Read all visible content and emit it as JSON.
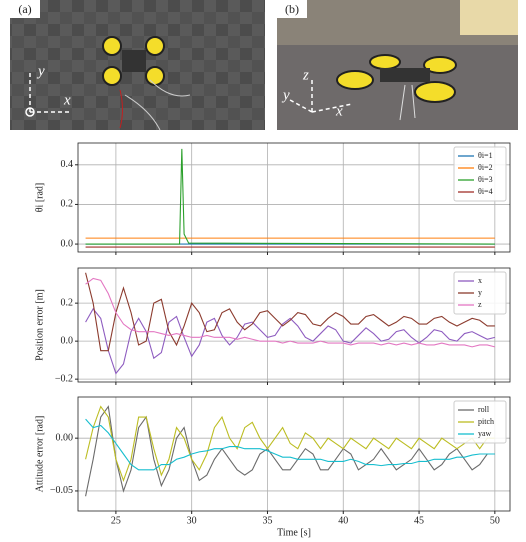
{
  "photos": [
    {
      "label": "(a)",
      "axes": [
        "y",
        "x"
      ]
    },
    {
      "label": "(b)",
      "axes": [
        "z",
        "y",
        "x"
      ]
    }
  ],
  "chart_data": [
    {
      "type": "line",
      "ylabel": "θi [rad]",
      "legend": "upper right",
      "grid": true,
      "xtick_labels": false,
      "xlim": [
        22.5,
        51
      ],
      "xticks": [
        25,
        30,
        35,
        40,
        45,
        50
      ],
      "ylim": [
        -0.04,
        0.51
      ],
      "yticks": [
        {
          "value": 0,
          "label": "0.0"
        },
        {
          "value": 0.2,
          "label": "0.2"
        },
        {
          "value": 0.4,
          "label": "0.4"
        }
      ],
      "x": [
        23,
        29.2,
        29.35,
        29.5,
        29.8,
        50
      ],
      "series": [
        {
          "name": "θi=1",
          "color": "#1f77b4",
          "values": [
            0,
            0,
            0,
            0,
            0,
            0
          ]
        },
        {
          "name": "θi=2",
          "color": "#ff7f0e",
          "values": [
            0.03,
            0.03,
            0.03,
            0.03,
            0.03,
            0.03
          ]
        },
        {
          "name": "θi=3",
          "color": "#2ca02c",
          "values": [
            0,
            0,
            0.48,
            0.05,
            0.005,
            0
          ]
        },
        {
          "name": "θi=4",
          "color": "#a0302a",
          "values": [
            -0.015,
            -0.015,
            -0.015,
            -0.015,
            -0.015,
            -0.015
          ]
        }
      ]
    },
    {
      "type": "line",
      "ylabel": "Position error [m]",
      "legend": "upper right",
      "grid": true,
      "xtick_labels": false,
      "xlim": [
        22.5,
        51
      ],
      "xticks": [
        25,
        30,
        35,
        40,
        45,
        50
      ],
      "ylim": [
        -0.215,
        0.385
      ],
      "yticks": [
        {
          "value": -0.2,
          "label": "−0.2"
        },
        {
          "value": 0,
          "label": "0.0"
        },
        {
          "value": 0.2,
          "label": "0.2"
        }
      ],
      "x": [
        23,
        23.5,
        24,
        24.5,
        25,
        25.5,
        26,
        26.5,
        27,
        27.5,
        28,
        28.5,
        29,
        29.5,
        30,
        30.5,
        31,
        31.5,
        32,
        32.5,
        33,
        33.5,
        34,
        34.5,
        35,
        35.5,
        36,
        36.5,
        37,
        37.5,
        38,
        38.5,
        39,
        39.5,
        40,
        40.5,
        41,
        41.5,
        42,
        42.5,
        43,
        43.5,
        44,
        44.5,
        45,
        45.5,
        46,
        46.5,
        47,
        47.5,
        48,
        48.5,
        49,
        49.5,
        50
      ],
      "series": [
        {
          "name": "x",
          "color": "#8e5cc0",
          "values": [
            0.1,
            0.17,
            0.12,
            -0.05,
            -0.17,
            -0.12,
            0.05,
            0.12,
            0.05,
            -0.09,
            -0.06,
            0.1,
            0.13,
            0.02,
            -0.08,
            -0.02,
            0.1,
            0.12,
            0.03,
            -0.02,
            0.02,
            0.09,
            0.1,
            0.06,
            0.02,
            0.03,
            0.09,
            0.12,
            0.08,
            0.02,
            0.0,
            0.04,
            0.08,
            0.06,
            0.0,
            -0.01,
            0.03,
            0.07,
            0.04,
            0.0,
            0.01,
            0.05,
            0.06,
            0.02,
            -0.01,
            0.02,
            0.06,
            0.05,
            0.01,
            0.0,
            0.04,
            0.05,
            0.03,
            0.01,
            0.02
          ]
        },
        {
          "name": "y",
          "color": "#8c3b2e",
          "values": [
            0.36,
            0.2,
            -0.05,
            -0.05,
            0.15,
            0.28,
            0.15,
            -0.02,
            0.0,
            0.2,
            0.22,
            0.05,
            -0.02,
            0.08,
            0.2,
            0.15,
            0.05,
            0.06,
            0.15,
            0.17,
            0.1,
            0.06,
            0.09,
            0.15,
            0.16,
            0.12,
            0.08,
            0.11,
            0.15,
            0.14,
            0.09,
            0.08,
            0.12,
            0.15,
            0.13,
            0.09,
            0.09,
            0.13,
            0.14,
            0.11,
            0.08,
            0.1,
            0.13,
            0.12,
            0.09,
            0.09,
            0.12,
            0.13,
            0.1,
            0.08,
            0.1,
            0.12,
            0.11,
            0.08,
            0.08
          ]
        },
        {
          "name": "z",
          "color": "#e377c2",
          "values": [
            0.3,
            0.33,
            0.32,
            0.25,
            0.15,
            0.09,
            0.06,
            0.05,
            0.05,
            0.05,
            0.04,
            0.03,
            0.04,
            0.03,
            0.02,
            0.02,
            0.03,
            0.02,
            0.02,
            0.02,
            0.01,
            0.02,
            0.01,
            0.0,
            0.0,
            0.0,
            -0.01,
            0.0,
            -0.01,
            -0.01,
            -0.01,
            0.0,
            -0.01,
            -0.01,
            -0.01,
            -0.02,
            -0.01,
            -0.01,
            -0.01,
            -0.02,
            -0.01,
            -0.02,
            -0.01,
            -0.02,
            -0.01,
            -0.02,
            -0.02,
            -0.01,
            -0.02,
            -0.02,
            -0.02,
            -0.03,
            -0.02,
            -0.02,
            -0.03
          ]
        }
      ]
    },
    {
      "type": "line",
      "ylabel": "Attitude error [rad]",
      "xlabel": "Time [s]",
      "legend": "upper right",
      "grid": true,
      "xtick_labels": true,
      "xlim": [
        22.5,
        51
      ],
      "xticks": [
        25,
        30,
        35,
        40,
        45,
        50
      ],
      "ylim": [
        -0.069,
        0.039
      ],
      "yticks": [
        {
          "value": -0.05,
          "label": "−0.05"
        },
        {
          "value": 0,
          "label": "0.00"
        }
      ],
      "x": [
        23,
        23.5,
        24,
        24.5,
        25,
        25.5,
        26,
        26.5,
        27,
        27.5,
        28,
        28.5,
        29,
        29.5,
        30,
        30.5,
        31,
        31.5,
        32,
        32.5,
        33,
        33.5,
        34,
        34.5,
        35,
        35.5,
        36,
        36.5,
        37,
        37.5,
        38,
        38.5,
        39,
        39.5,
        40,
        40.5,
        41,
        41.5,
        42,
        42.5,
        43,
        43.5,
        44,
        44.5,
        45,
        45.5,
        46,
        46.5,
        47,
        47.5,
        48,
        48.5,
        49,
        49.5,
        50
      ],
      "series": [
        {
          "name": "roll",
          "color": "#6b6b6b",
          "values": [
            -0.055,
            -0.02,
            0.02,
            0.03,
            -0.02,
            -0.05,
            -0.03,
            0.01,
            0.02,
            -0.02,
            -0.045,
            -0.03,
            0.0,
            0.01,
            -0.02,
            -0.04,
            -0.035,
            -0.02,
            -0.01,
            -0.02,
            -0.03,
            -0.035,
            -0.03,
            -0.015,
            -0.01,
            -0.02,
            -0.03,
            -0.03,
            -0.02,
            -0.01,
            -0.015,
            -0.03,
            -0.03,
            -0.02,
            -0.01,
            -0.015,
            -0.03,
            -0.025,
            -0.02,
            -0.01,
            -0.02,
            -0.03,
            -0.025,
            -0.02,
            -0.01,
            -0.02,
            -0.03,
            -0.025,
            -0.015,
            -0.01,
            -0.02,
            -0.03,
            -0.025,
            -0.015,
            -0.015
          ]
        },
        {
          "name": "pitch",
          "color": "#bcbd22",
          "values": [
            -0.02,
            0.01,
            0.03,
            0.02,
            -0.02,
            -0.04,
            -0.02,
            0.02,
            0.02,
            -0.01,
            -0.035,
            -0.02,
            0.01,
            0.0,
            -0.02,
            -0.03,
            -0.015,
            0.01,
            0.02,
            0.0,
            -0.01,
            0.01,
            0.015,
            0.0,
            -0.01,
            0.0,
            0.01,
            -0.005,
            -0.01,
            0.005,
            0.0,
            -0.01,
            0.0,
            -0.005,
            -0.01,
            0.0,
            -0.005,
            -0.01,
            0.0,
            -0.005,
            -0.01,
            0.0,
            -0.005,
            -0.01,
            0.0,
            -0.005,
            -0.01,
            0.0,
            -0.005,
            -0.01,
            -0.005,
            0.0,
            -0.01,
            0.0,
            0.0
          ]
        },
        {
          "name": "yaw",
          "color": "#17becf",
          "values": [
            0.018,
            0.01,
            0.012,
            0.005,
            -0.005,
            -0.015,
            -0.025,
            -0.03,
            -0.03,
            -0.03,
            -0.025,
            -0.025,
            -0.02,
            -0.018,
            -0.015,
            -0.013,
            -0.012,
            -0.01,
            -0.01,
            -0.008,
            -0.008,
            -0.01,
            -0.01,
            -0.01,
            -0.012,
            -0.015,
            -0.018,
            -0.018,
            -0.02,
            -0.02,
            -0.02,
            -0.02,
            -0.022,
            -0.022,
            -0.022,
            -0.02,
            -0.022,
            -0.025,
            -0.025,
            -0.026,
            -0.025,
            -0.025,
            -0.024,
            -0.024,
            -0.022,
            -0.022,
            -0.02,
            -0.02,
            -0.02,
            -0.018,
            -0.018,
            -0.016,
            -0.015,
            -0.015,
            -0.015
          ]
        }
      ]
    }
  ]
}
